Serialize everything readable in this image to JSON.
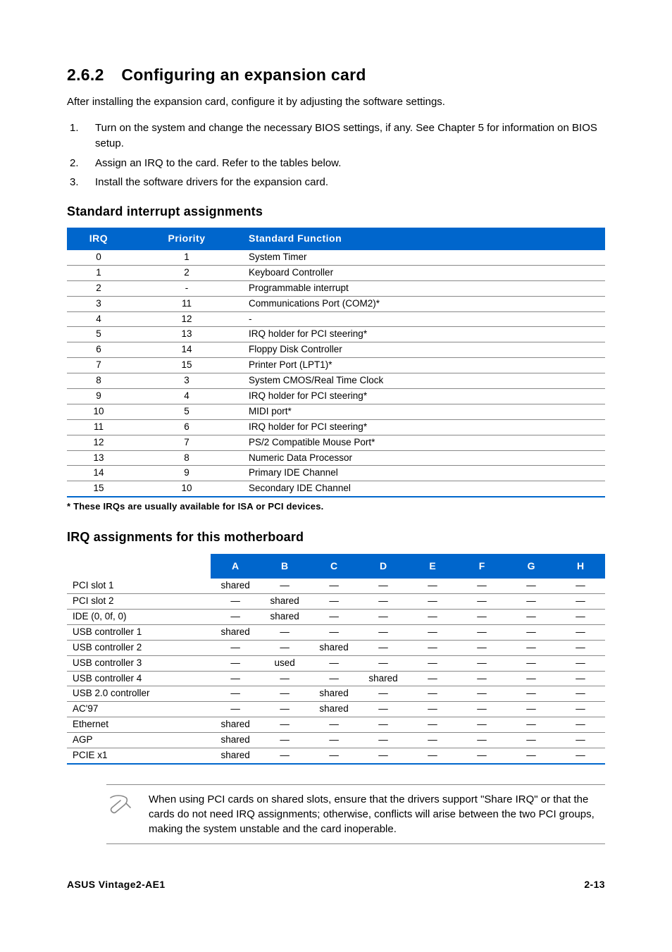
{
  "heading": {
    "number": "2.6.2",
    "title": "Configuring an expansion card"
  },
  "intro": "After installing the expansion card, configure it by adjusting the software settings.",
  "steps": [
    {
      "num": "1.",
      "text": "Turn on the system and change the necessary BIOS settings, if any. See Chapter 5 for information on BIOS setup."
    },
    {
      "num": "2.",
      "text": "Assign an IRQ to the card. Refer to the tables below."
    },
    {
      "num": "3.",
      "text": "Install the software drivers for the expansion card."
    }
  ],
  "irq_section": {
    "title": "Standard interrupt assignments",
    "columns": [
      "IRQ",
      "Priority",
      "Standard Function"
    ],
    "rows": [
      [
        "0",
        "1",
        "System Timer"
      ],
      [
        "1",
        "2",
        "Keyboard Controller"
      ],
      [
        "2",
        "-",
        "Programmable interrupt"
      ],
      [
        "3",
        "11",
        "Communications Port (COM2)*"
      ],
      [
        "4",
        "12",
        "-"
      ],
      [
        "5",
        "13",
        "IRQ holder for PCI steering*"
      ],
      [
        "6",
        "14",
        "Floppy Disk Controller"
      ],
      [
        "7",
        "15",
        "Printer Port (LPT1)*"
      ],
      [
        "8",
        "3",
        "System CMOS/Real Time Clock"
      ],
      [
        "9",
        "4",
        "IRQ holder for PCI steering*"
      ],
      [
        "10",
        "5",
        "MIDI port*"
      ],
      [
        "11",
        "6",
        "IRQ holder for PCI steering*"
      ],
      [
        "12",
        "7",
        "PS/2 Compatible Mouse Port*"
      ],
      [
        "13",
        "8",
        "Numeric Data Processor"
      ],
      [
        "14",
        "9",
        "Primary IDE Channel"
      ],
      [
        "15",
        "10",
        "Secondary IDE Channel"
      ]
    ],
    "footnote": "* These IRQs are usually available for ISA or PCI devices."
  },
  "mb_section": {
    "title": "IRQ assignments for this motherboard",
    "columns": [
      "",
      "A",
      "B",
      "C",
      "D",
      "E",
      "F",
      "G",
      "H"
    ],
    "rows": [
      [
        "PCI slot 1",
        "shared",
        "—",
        "—",
        "—",
        "—",
        "—",
        "—",
        "—"
      ],
      [
        "PCI slot 2",
        "—",
        "shared",
        "—",
        "—",
        "—",
        "—",
        "—",
        "—"
      ],
      [
        "IDE (0, 0f, 0)",
        "—",
        "shared",
        "—",
        "—",
        "—",
        "—",
        "—",
        "—"
      ],
      [
        "USB controller 1",
        "shared",
        "—",
        "—",
        "—",
        "—",
        "—",
        "—",
        "—"
      ],
      [
        "USB controller 2",
        "—",
        "—",
        "shared",
        "—",
        "—",
        "—",
        "—",
        "—"
      ],
      [
        "USB controller 3",
        "—",
        "used",
        "—",
        "—",
        "—",
        "—",
        "—",
        "—"
      ],
      [
        "USB controller 4",
        "—",
        "—",
        "—",
        "shared",
        "—",
        "—",
        "—",
        "—"
      ],
      [
        "USB 2.0 controller",
        "—",
        "—",
        "shared",
        "—",
        "—",
        "—",
        "—",
        "—"
      ],
      [
        "AC'97",
        "—",
        "—",
        "shared",
        "—",
        "—",
        "—",
        "—",
        "—"
      ],
      [
        "Ethernet",
        "shared",
        "—",
        "—",
        "—",
        "—",
        "—",
        "—",
        "—"
      ],
      [
        "AGP",
        "shared",
        "—",
        "—",
        "—",
        "—",
        "—",
        "—",
        "—"
      ],
      [
        "PCIE  x1",
        "shared",
        "—",
        "—",
        "—",
        "—",
        "—",
        "—",
        "—"
      ]
    ]
  },
  "note": "When using PCI cards on shared slots, ensure that the drivers support \"Share IRQ\" or that the cards do not need IRQ assignments; otherwise, conflicts will arise between the two PCI groups, making the system unstable and the card inoperable.",
  "footer": {
    "left": "ASUS Vintage2-AE1",
    "right": "2-13"
  },
  "colors": {
    "header_bg": "#0066cc",
    "header_fg": "#ffffff",
    "row_border": "#888888",
    "table_bottom": "#0066cc"
  }
}
